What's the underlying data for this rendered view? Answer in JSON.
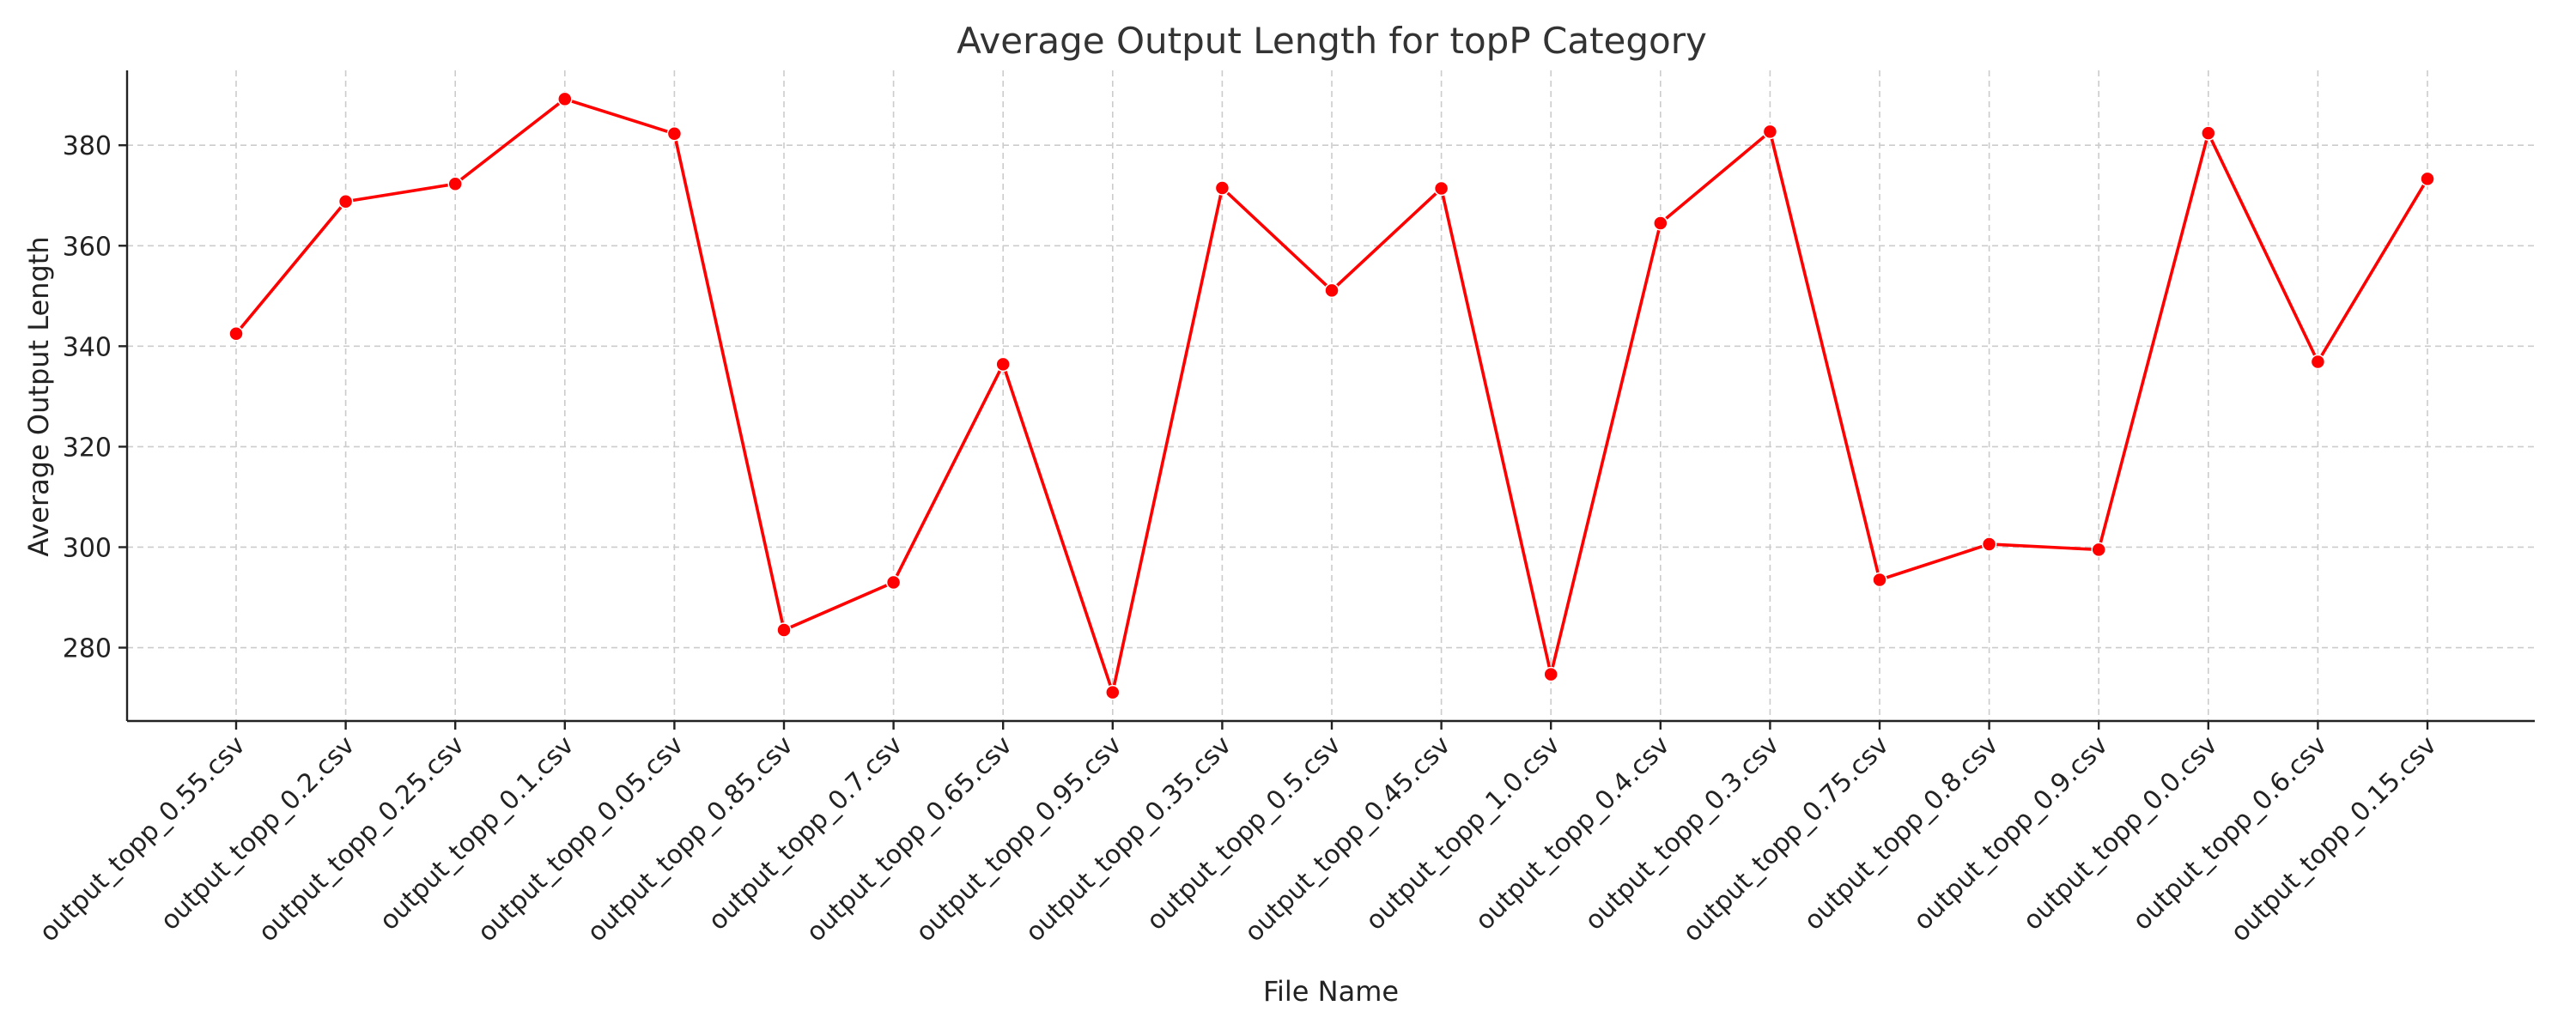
{
  "chart_data": {
    "type": "line",
    "title": "Average Output Length for topP Category",
    "xlabel": "File Name",
    "ylabel": "Average Output Length",
    "categories": [
      "output_topp_0.55.csv",
      "output_topp_0.2.csv",
      "output_topp_0.25.csv",
      "output_topp_0.1.csv",
      "output_topp_0.05.csv",
      "output_topp_0.85.csv",
      "output_topp_0.7.csv",
      "output_topp_0.65.csv",
      "output_topp_0.95.csv",
      "output_topp_0.35.csv",
      "output_topp_0.5.csv",
      "output_topp_0.45.csv",
      "output_topp_1.0.csv",
      "output_topp_0.4.csv",
      "output_topp_0.3.csv",
      "output_topp_0.75.csv",
      "output_topp_0.8.csv",
      "output_topp_0.9.csv",
      "output_topp_0.0.csv",
      "output_topp_0.6.csv",
      "output_topp_0.15.csv"
    ],
    "series": [
      {
        "values": [
          342.5,
          368.8,
          372.3,
          389.2,
          382.3,
          283.5,
          293.0,
          336.4,
          271.1,
          371.5,
          351.1,
          371.4,
          274.7,
          364.5,
          382.7,
          293.5,
          300.6,
          299.5,
          382.4,
          336.9,
          373.3
        ]
      }
    ],
    "ylim": [
      265.4,
      394.9
    ],
    "yticks": [
      280,
      300,
      320,
      340,
      360,
      380
    ],
    "grid": true,
    "legend": "none",
    "colors": {
      "line": "#ff0000",
      "grid": "#cccccc",
      "axis": "#222222"
    }
  }
}
